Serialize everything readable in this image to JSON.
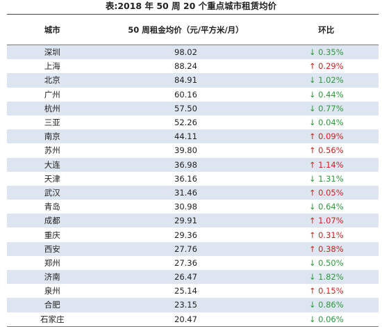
{
  "header": {
    "title": "表:2018 年 50 周 20 个重点城市租赁均价"
  },
  "table": {
    "columns": [
      "城市",
      "50 周租金均价（元/平方米/月）",
      "环比"
    ],
    "rows": [
      [
        "深圳",
        "98.02",
        "↓ 0.35%"
      ],
      [
        "上海",
        "88.24",
        "↑ 0.29%"
      ],
      [
        "北京",
        "84.91",
        "↓ 1.02%"
      ],
      [
        "广州",
        "60.16",
        "↓ 0.44%"
      ],
      [
        "杭州",
        "57.50",
        "↓ 0.77%"
      ],
      [
        "三亚",
        "52.26",
        "↓ 0.04%"
      ],
      [
        "南京",
        "44.11",
        "↑ 0.09%"
      ],
      [
        "苏州",
        "39.80",
        "↑ 0.56%"
      ],
      [
        "大连",
        "36.98",
        "↑ 1.14%"
      ],
      [
        "天津",
        "36.16",
        "↓ 1.31%"
      ],
      [
        "武汉",
        "31.46",
        "↑ 0.05%"
      ],
      [
        "青岛",
        "30.98",
        "↓ 0.64%"
      ],
      [
        "成都",
        "29.91",
        "↑ 1.07%"
      ],
      [
        "重庆",
        "29.36",
        "↑ 0.31%"
      ],
      [
        "西安",
        "27.76",
        "↑ 0.38%"
      ],
      [
        "郑州",
        "27.36",
        "↓ 0.50%"
      ],
      [
        "济南",
        "26.47",
        "↓ 1.82%"
      ],
      [
        "泉州",
        "25.14",
        "↑ 0.15%"
      ],
      [
        "合肥",
        "23.15",
        "↓ 0.86%"
      ],
      [
        "石家庄",
        "20.47",
        "↓ 0.06%"
      ]
    ]
  }
}
